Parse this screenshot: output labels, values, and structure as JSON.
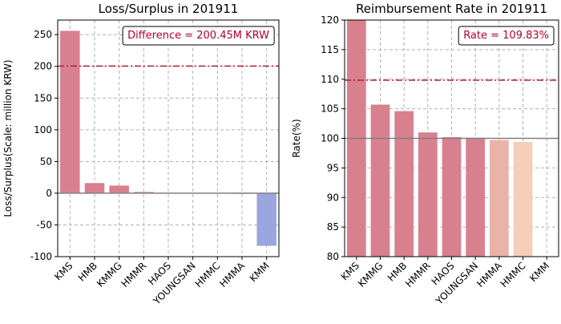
{
  "chart_data": [
    {
      "type": "bar",
      "title": "Loss/Surplus in 201911",
      "ylabel": "Loss/Surplus(Scale: million KRW)",
      "categories": [
        "KMS",
        "HMB",
        "KMMG",
        "HMMR",
        "HAOS",
        "YOUNGSAN",
        "HMMC",
        "HMMA",
        "KMM"
      ],
      "values": [
        256,
        16,
        12,
        2,
        0.5,
        0,
        0,
        -1,
        -83
      ],
      "colors": [
        "#d9808f",
        "#d9808f",
        "#d9808f",
        "#d9808f",
        "#d9808f",
        "#d9808f",
        "#d9808f",
        "#e6a49c",
        "#9ba6e0"
      ],
      "ylim": [
        -100,
        273
      ],
      "yticks": [
        -100,
        -50,
        0,
        50,
        100,
        150,
        200,
        250
      ],
      "ref_line": 200.45,
      "baseline": 0,
      "annotation": "Difference = 200.45M KRW",
      "grid": true
    },
    {
      "type": "bar",
      "title": "Reimbursement Rate in 201911",
      "ylabel": "Rate(%)",
      "categories": [
        "KMS",
        "KMMG",
        "HMB",
        "HMMR",
        "HAOS",
        "YOUNGSAN",
        "HMMA",
        "HMMC",
        "KMM"
      ],
      "values": [
        120,
        105.7,
        104.6,
        101,
        100.2,
        100.1,
        99.7,
        99.4,
        null
      ],
      "colors": [
        "#d9808f",
        "#d9808f",
        "#d9808f",
        "#d9808f",
        "#d9808f",
        "#d9808f",
        "#eab3a8",
        "#f5cdb8",
        "#d9808f"
      ],
      "ylim": [
        80,
        120
      ],
      "yticks": [
        80,
        85,
        90,
        95,
        100,
        105,
        110,
        115,
        120
      ],
      "ref_line": 109.83,
      "baseline": 100,
      "annotation": "Rate = 109.83%",
      "grid": true
    }
  ]
}
